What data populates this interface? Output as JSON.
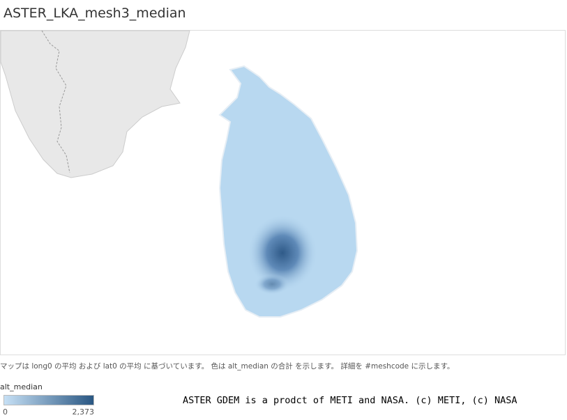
{
  "title": "ASTER_LKA_mesh3_median",
  "caption": "マップは long0 の平均 および lat0 の平均 に基づいています。 色は alt_median の合計 を示します。 詳細を #meshcode に示します。",
  "legend": {
    "title": "alt_median",
    "min": "0",
    "max": "2,373"
  },
  "credit": "ASTER GDEM is a prodct of METI and NASA. (c) METI, (c) NASA"
}
